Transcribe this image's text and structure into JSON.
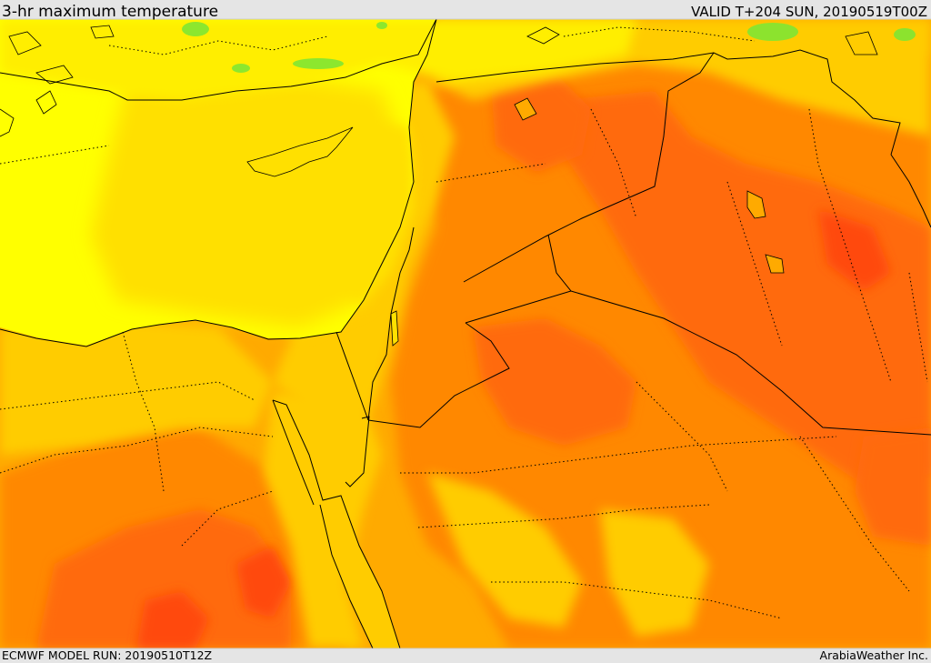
{
  "header": {
    "title": "3-hr maximum temperature",
    "valid": "VALID T+204 SUN, 20190519T00Z"
  },
  "footer": {
    "model_run": "ECMWF MODEL RUN: 20190510T12Z",
    "credit": "ArabiaWeather Inc."
  },
  "palette": {
    "frame": "#e5e5e5",
    "sea": "#ffff00",
    "green": "#7fe533",
    "cool_land": "#ffe000",
    "mild": "#ffcc00",
    "warm": "#ffaa00",
    "hot": "#ff8800",
    "very_hot": "#ff6a10",
    "extreme": "#ff4a10",
    "boundary": "#000000"
  }
}
